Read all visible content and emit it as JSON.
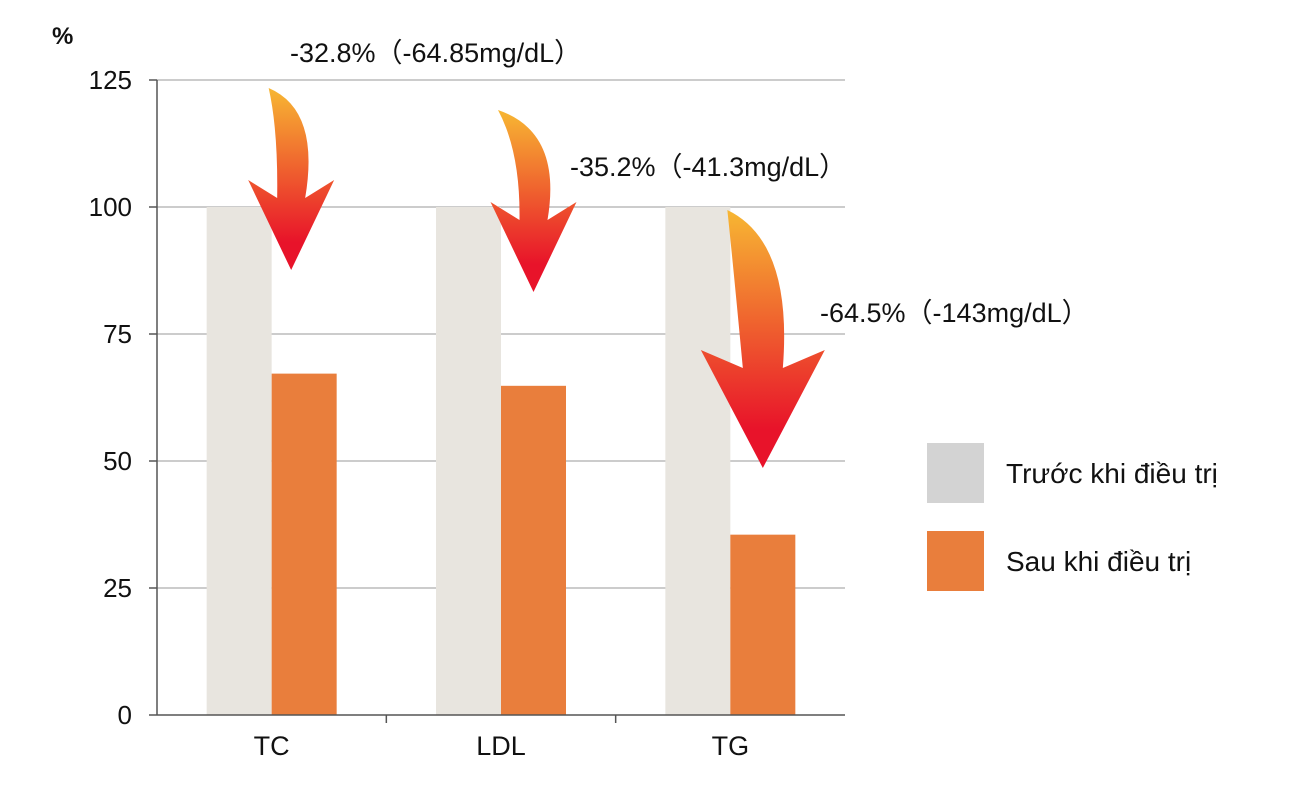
{
  "chart_data": {
    "type": "bar",
    "unit_label": "%",
    "categories": [
      "TC",
      "LDL",
      "TG"
    ],
    "series": [
      {
        "name": "Trước khi điều trị",
        "color": "#e8e5df",
        "legend_color": "#d3d3d3",
        "values": [
          100,
          100,
          100
        ]
      },
      {
        "name": "Sau khi điều trị",
        "color": "#e97e3c",
        "legend_color": "#e97e3c",
        "values": [
          67.2,
          64.8,
          35.5
        ]
      }
    ],
    "ylim": [
      0,
      125
    ],
    "yticks": [
      0,
      25,
      50,
      75,
      100,
      125
    ],
    "grid": true,
    "legend_position": "right",
    "annotations": [
      {
        "category": "TC",
        "text": "-32.8%（-64.85mg/dL）"
      },
      {
        "category": "LDL",
        "text": "-35.2%（-41.3mg/dL）"
      },
      {
        "category": "TG",
        "text": "-64.5%（-143mg/dL）"
      }
    ],
    "arrow_gradient": [
      "#f7b733",
      "#e8132a"
    ]
  }
}
